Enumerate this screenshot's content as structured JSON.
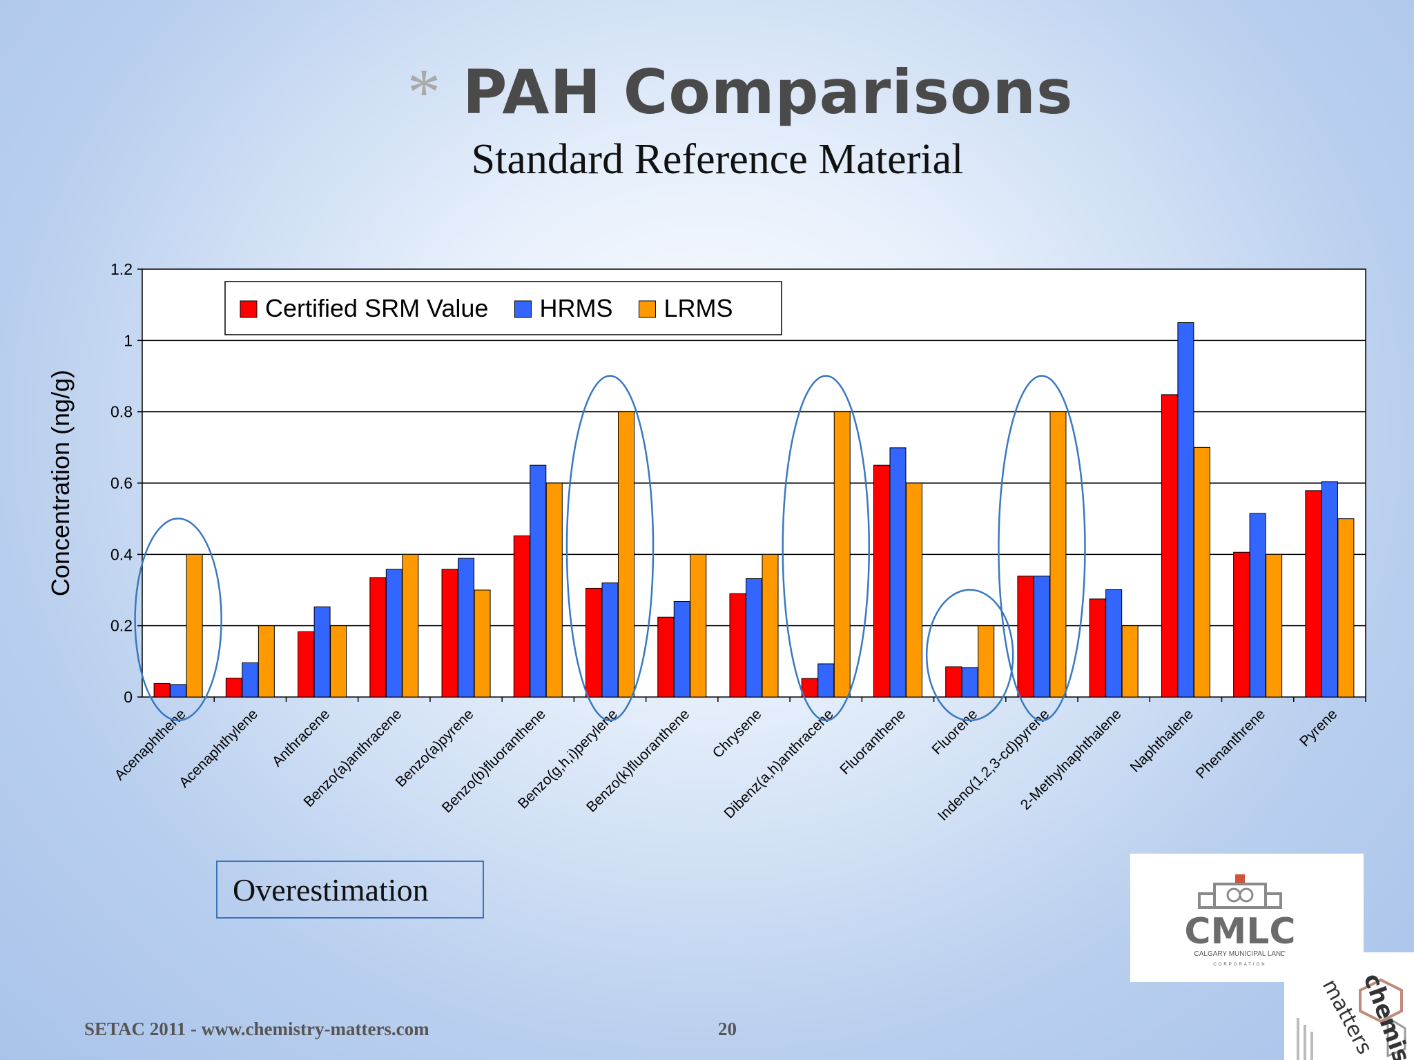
{
  "slide": {
    "star": "*",
    "title": "PAH Comparisons",
    "subtitle": "Standard Reference Material",
    "annotation": "Overestimation",
    "footer_left": "SETAC 2011 - www.chemistry-matters.com",
    "page_number": "20",
    "logo_cmlc": {
      "name": "CMLC",
      "line1": "CALGARY MUNICIPAL LAND",
      "line2": "CORPORATION"
    },
    "logo_cm": {
      "word1": "chemistry",
      "word2": "matters"
    }
  },
  "chart_data": {
    "type": "bar",
    "ylabel": "Concentration (ng/g)",
    "ylim": [
      0,
      1.2
    ],
    "yticks": [
      "0",
      "0.2",
      "0.4",
      "0.6",
      "0.8",
      "1",
      "1.2"
    ],
    "grid": true,
    "legend_position": "top-left",
    "categories": [
      "Acenaphthene",
      "Acenaphthylene",
      "Anthracene",
      "Benzo(a)anthracene",
      "Benzo(a)pyrene",
      "Benzo(b)fluoranthene",
      "Benzo(g,h,i)perylene",
      "Benzo(k)fluoranthene",
      "Chrysene",
      "Dibenz(a,h)anthracene",
      "Fluoranthene",
      "Fluorene",
      "Indeno(1,2,3-cd)pyrene",
      "2-Methylnaphthalene",
      "Naphthalene",
      "Phenanthrene",
      "Pyrene"
    ],
    "series": [
      {
        "name": "Certified SRM Value",
        "color": "#ff0000",
        "values": [
          0.038,
          0.053,
          0.183,
          0.335,
          0.358,
          0.452,
          0.305,
          0.224,
          0.29,
          0.052,
          0.65,
          0.085,
          0.339,
          0.275,
          0.848,
          0.406,
          0.579
        ]
      },
      {
        "name": "HRMS",
        "color": "#3366ff",
        "values": [
          0.035,
          0.096,
          0.253,
          0.358,
          0.389,
          0.65,
          0.32,
          0.268,
          0.332,
          0.093,
          0.699,
          0.082,
          0.339,
          0.301,
          1.05,
          0.515,
          0.604
        ]
      },
      {
        "name": "LRMS",
        "color": "#ff9900",
        "values": [
          0.4,
          0.2,
          0.2,
          0.4,
          0.3,
          0.6,
          0.8,
          0.4,
          0.4,
          0.8,
          0.6,
          0.2,
          0.8,
          0.2,
          0.7,
          0.4,
          0.5
        ]
      }
    ],
    "highlighted_categories": [
      "Acenaphthene",
      "Benzo(g,h,i)perylene",
      "Dibenz(a,h)anthracene",
      "Fluorene",
      "Indeno(1,2,3-cd)pyrene"
    ]
  }
}
